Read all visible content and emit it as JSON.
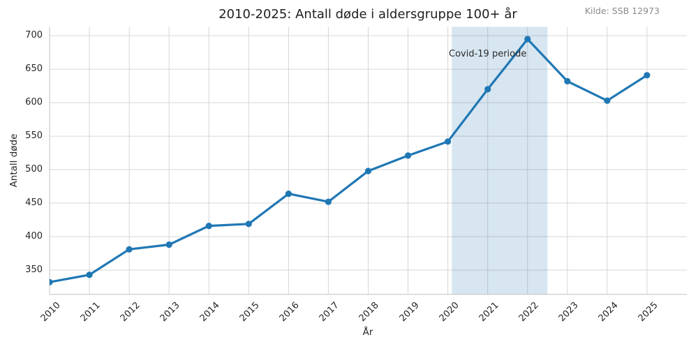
{
  "source_note": "Kilde: SSB 12973",
  "chart_data": {
    "type": "line",
    "title": "2010-2025: Antall døde i aldersgruppe 100+ år",
    "xlabel": "År",
    "ylabel": "Antall døde",
    "categories": [
      2010,
      2011,
      2012,
      2013,
      2014,
      2015,
      2016,
      2017,
      2018,
      2019,
      2020,
      2021,
      2022,
      2023,
      2024,
      2025
    ],
    "series": [
      {
        "name": "Antall døde",
        "color": "#1f77b4",
        "values": [
          332,
          343,
          381,
          388,
          416,
          419,
          464,
          452,
          498,
          521,
          542,
          620,
          695,
          632,
          603,
          641
        ]
      }
    ],
    "yticks": [
      350,
      400,
      450,
      500,
      550,
      600,
      650,
      700
    ],
    "ylim": [
      313.8,
      713.2
    ],
    "xlim": [
      2010,
      2026
    ],
    "grid": true,
    "legend": "none",
    "annotations": [
      {
        "type": "band",
        "label": "Covid-19 periode",
        "x_start": 2020.1,
        "x_end": 2022.5,
        "label_x": 2021,
        "label_y": 672,
        "band_color": "rgba(31,119,180,0.18)"
      }
    ],
    "colors": {
      "line": "#1f77b4",
      "grid": "#d6d6d6",
      "spine": "#c0c0c0",
      "text": "#262626",
      "muted": "#8a8a8a",
      "background": "#ffffff"
    }
  }
}
